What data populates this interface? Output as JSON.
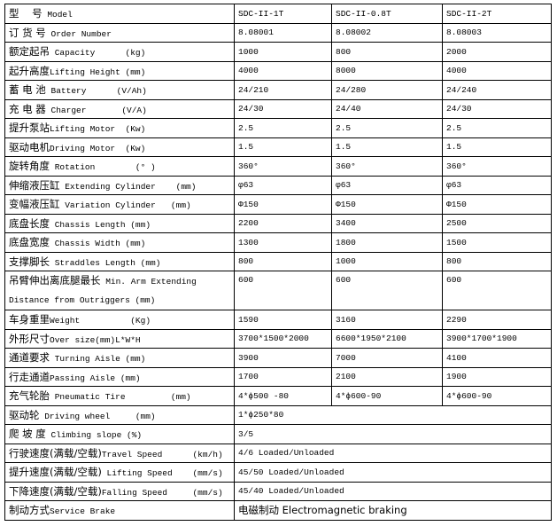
{
  "spec_table": {
    "rows": [
      {
        "cn": "型    号",
        "en": " Model",
        "values": [
          "SDC-II-1T",
          "SDC-II-0.8T",
          "SDC-II-2T"
        ]
      },
      {
        "cn": "订 货 号",
        "en": " Order Number",
        "values": [
          "8.08001",
          "8.08002",
          "8.08003"
        ]
      },
      {
        "cn": "额定起吊",
        "en": " Capacity      (kg)",
        "values": [
          "1000",
          "800",
          "2000"
        ]
      },
      {
        "cn": "起升高度",
        "en": "Lifting Height (mm)",
        "values": [
          "4000",
          "8000",
          "4000"
        ]
      },
      {
        "cn": "蓄 电 池",
        "en": " Battery      (V/Ah)",
        "values": [
          "24/210",
          "24/280",
          "24/240"
        ]
      },
      {
        "cn": "充 电 器",
        "en": " Charger       (V/A)",
        "values": [
          "24/30",
          "24/40",
          "24/30"
        ]
      },
      {
        "cn": "提升泵站",
        "en": "Lifting Motor  (Kw)",
        "values": [
          "2.5",
          "2.5",
          "2.5"
        ]
      },
      {
        "cn": "驱动电机",
        "en": "Driving Motor  (Kw)",
        "values": [
          "1.5",
          "1.5",
          "1.5"
        ]
      },
      {
        "cn": "旋转角度",
        "en": " Rotation        (° )",
        "values": [
          "360°",
          "360°",
          "360°"
        ]
      },
      {
        "cn": "伸缩液压缸",
        "en": " Extending Cylinder    (mm)",
        "values": [
          "φ63",
          "φ63",
          "φ63"
        ]
      },
      {
        "cn": "变幅液压缸",
        "en": " Variation Cylinder   (mm)",
        "values": [
          "Φ150",
          "Φ150",
          "Φ150"
        ]
      },
      {
        "cn": "底盘长度",
        "en": " Chassis Length (mm)",
        "values": [
          "2200",
          "3400",
          "2500"
        ]
      },
      {
        "cn": "底盘宽度",
        "en": " Chassis Width (mm)",
        "values": [
          "1300",
          "1800",
          "1500"
        ]
      },
      {
        "cn": "支撑脚长",
        "en": " Straddles Length (mm)",
        "values": [
          "800",
          "1000",
          "800"
        ]
      },
      {
        "cn": "吊臂伸出离底腿最长",
        "en": " Min. Arm Extending Distance from Outriggers (mm)",
        "values": [
          "600",
          "600",
          "600"
        ],
        "tall": true
      },
      {
        "cn": "车身重里",
        "en": "Weight          (Kg)",
        "values": [
          "1590",
          "3160",
          "2290"
        ]
      },
      {
        "cn": "外形尺寸",
        "en": "Over size(mm)L*W*H",
        "values": [
          "3700*1500*2000",
          "6600*1950*2100",
          "3900*1700*1900"
        ]
      },
      {
        "cn": "通道要求",
        "en": " Turning Aisle (mm)",
        "values": [
          "3900",
          "7000",
          "4100"
        ]
      },
      {
        "cn": "行走通道",
        "en": "Passing Aisle (mm)",
        "values": [
          "1700",
          "2100",
          "1900"
        ]
      },
      {
        "cn": "充气轮胎",
        "en": " Pneumatic Tire         (mm)",
        "values": [
          "4*ɸ500 -80",
          "4*ɸ600-90",
          "4*ɸ600-90"
        ]
      },
      {
        "cn": "驱动轮",
        "en": " Driving wheel     (mm)",
        "values": [
          "1*ɸ250*80"
        ]
      },
      {
        "cn": "爬 坡 度",
        "en": " Climbing slope (%)",
        "values": [
          "3/5"
        ]
      },
      {
        "cn": "行驶速度(满载/空载)",
        "en": "Travel Speed      (km/h)",
        "values": [
          "4/6 Loaded/Unloaded"
        ]
      },
      {
        "cn": "提升速度(满载/空载)",
        "en": " Lifting Speed    (mm/s)",
        "values": [
          "45/50 Loaded/Unloaded"
        ]
      },
      {
        "cn": "下降速度(满载/空载)",
        "en": "Falling Speed     (mm/s)",
        "values": [
          "45/40 Loaded/Unloaded"
        ]
      },
      {
        "cn": "制动方式",
        "en": "Service Brake",
        "values": [
          "电磁制动 Electromagnetic braking"
        ]
      }
    ]
  }
}
